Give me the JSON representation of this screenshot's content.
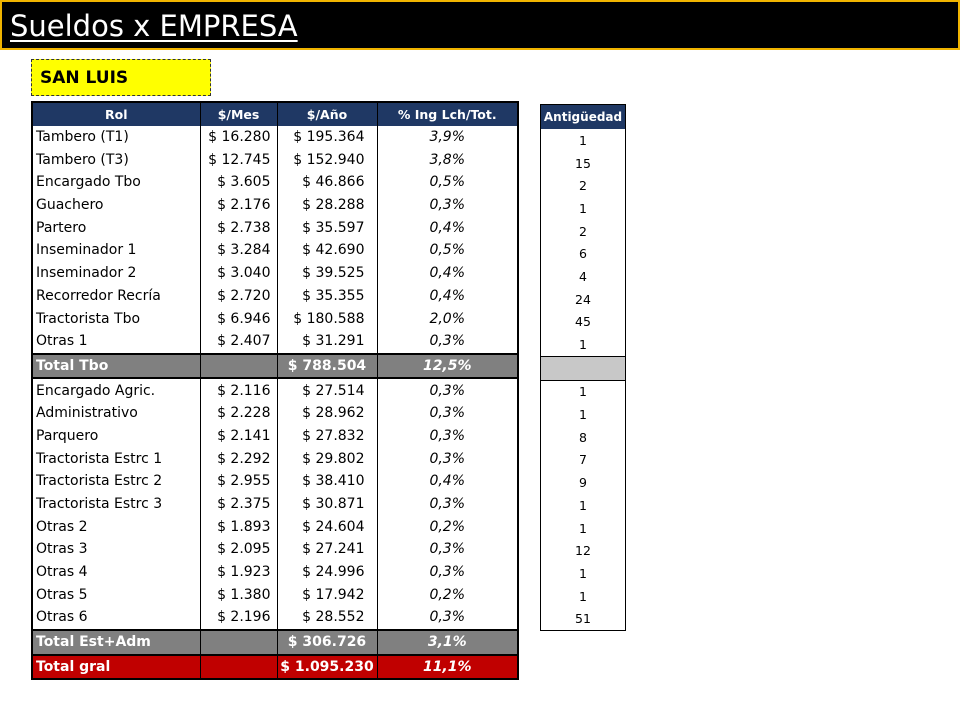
{
  "title": "Sueldos x EMPRESA",
  "region": "SAN LUIS",
  "salary_table": {
    "headers": [
      "Rol",
      "$/Mes",
      "$/Año",
      "% Ing Lch/Tot."
    ],
    "tambo_rows": [
      {
        "rol": "Tambero (T1)",
        "mes": "$ 16.280",
        "ano": "$ 195.364",
        "pct": "3,9%"
      },
      {
        "rol": "Tambero (T3)",
        "mes": "$ 12.745",
        "ano": "$ 152.940",
        "pct": "3,8%"
      },
      {
        "rol": "Encargado Tbo",
        "mes": "$ 3.605",
        "ano": "$ 46.866",
        "pct": "0,5%"
      },
      {
        "rol": "Guachero",
        "mes": "$ 2.176",
        "ano": "$ 28.288",
        "pct": "0,3%"
      },
      {
        "rol": "Partero",
        "mes": "$ 2.738",
        "ano": "$ 35.597",
        "pct": "0,4%"
      },
      {
        "rol": "Inseminador 1",
        "mes": "$ 3.284",
        "ano": "$ 42.690",
        "pct": "0,5%"
      },
      {
        "rol": "Inseminador 2",
        "mes": "$ 3.040",
        "ano": "$ 39.525",
        "pct": "0,4%"
      },
      {
        "rol": "Recorredor Recría",
        "mes": "$ 2.720",
        "ano": "$ 35.355",
        "pct": "0,4%"
      },
      {
        "rol": "Tractorista Tbo",
        "mes": "$ 6.946",
        "ano": "$ 180.588",
        "pct": "2,0%"
      },
      {
        "rol": "Otras 1",
        "mes": "$ 2.407",
        "ano": "$ 31.291",
        "pct": "0,3%"
      }
    ],
    "total_tbo": {
      "rol": "Total Tbo",
      "ano": "$ 788.504",
      "pct": "12,5%"
    },
    "est_rows": [
      {
        "rol": "Encargado Agric.",
        "mes": "$ 2.116",
        "ano": "$ 27.514",
        "pct": "0,3%"
      },
      {
        "rol": "Administrativo",
        "mes": "$ 2.228",
        "ano": "$ 28.962",
        "pct": "0,3%"
      },
      {
        "rol": "Parquero",
        "mes": "$ 2.141",
        "ano": "$ 27.832",
        "pct": "0,3%"
      },
      {
        "rol": "Tractorista Estrc 1",
        "mes": "$ 2.292",
        "ano": "$ 29.802",
        "pct": "0,3%"
      },
      {
        "rol": "Tractorista Estrc 2",
        "mes": "$ 2.955",
        "ano": "$ 38.410",
        "pct": "0,4%"
      },
      {
        "rol": "Tractorista Estrc 3",
        "mes": "$ 2.375",
        "ano": "$ 30.871",
        "pct": "0,3%"
      },
      {
        "rol": "Otras 2",
        "mes": "$ 1.893",
        "ano": "$ 24.604",
        "pct": "0,2%"
      },
      {
        "rol": "Otras 3",
        "mes": "$ 2.095",
        "ano": "$ 27.241",
        "pct": "0,3%"
      },
      {
        "rol": "Otras 4",
        "mes": "$ 1.923",
        "ano": "$ 24.996",
        "pct": "0,3%"
      },
      {
        "rol": "Otras 5",
        "mes": "$ 1.380",
        "ano": "$ 17.942",
        "pct": "0,2%"
      },
      {
        "rol": "Otras 6",
        "mes": "$ 2.196",
        "ano": "$ 28.552",
        "pct": "0,3%"
      }
    ],
    "total_est": {
      "rol": "Total Est+Adm",
      "ano": "$ 306.726",
      "pct": "3,1%"
    },
    "total_gral": {
      "rol": "Total gral",
      "ano": "$ 1.095.230",
      "pct": "11,1%"
    }
  },
  "antiguedad": {
    "header": "Antigüedad",
    "tambo": [
      "1",
      "15",
      "2",
      "1",
      "2",
      "6",
      "4",
      "24",
      "45",
      "1"
    ],
    "est": [
      "1",
      "1",
      "8",
      "7",
      "9",
      "1",
      "1",
      "12",
      "1",
      "1",
      "51"
    ]
  },
  "colors": {
    "header_bg": "#1f3864",
    "total_bg": "#808080",
    "gral_bg": "#c00000",
    "region_bg": "#ffff00",
    "title_border": "#f0b400"
  }
}
